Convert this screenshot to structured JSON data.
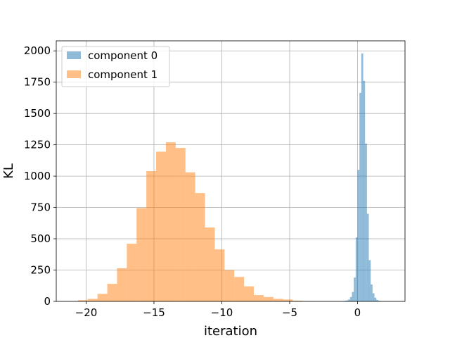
{
  "chart_data": {
    "type": "histogram",
    "title": "",
    "xlabel": "iteration",
    "ylabel": "KL",
    "xlim": [
      -22.2,
      3.5
    ],
    "ylim": [
      0,
      2080
    ],
    "xticks": [
      -20,
      -15,
      -10,
      -5,
      0
    ],
    "xtick_labels": [
      "−20",
      "−15",
      "−10",
      "−5",
      "0"
    ],
    "yticks": [
      0,
      250,
      500,
      750,
      1000,
      1250,
      1500,
      1750,
      2000
    ],
    "ytick_labels": [
      "0",
      "250",
      "500",
      "750",
      "1000",
      "1250",
      "1500",
      "1750",
      "2000"
    ],
    "grid": true,
    "legend_position": "upper-left",
    "series": [
      {
        "name": "component 0",
        "color": "#1f77b4",
        "alpha": 0.5,
        "bin_start": -1.1,
        "bin_width": 0.138,
        "counts": [
          2,
          5,
          8,
          15,
          35,
          75,
          190,
          510,
          1050,
          1665,
          1980,
          1760,
          1260,
          700,
          330,
          135,
          65,
          30,
          12,
          5
        ]
      },
      {
        "name": "component 1",
        "color": "#ff7f0e",
        "alpha": 0.5,
        "bin_start": -20.6,
        "bin_width": 0.72,
        "counts": [
          10,
          20,
          60,
          140,
          265,
          460,
          745,
          1040,
          1195,
          1270,
          1225,
          1030,
          865,
          590,
          415,
          250,
          195,
          120,
          50,
          35,
          20,
          15,
          5,
          2
        ]
      }
    ]
  }
}
